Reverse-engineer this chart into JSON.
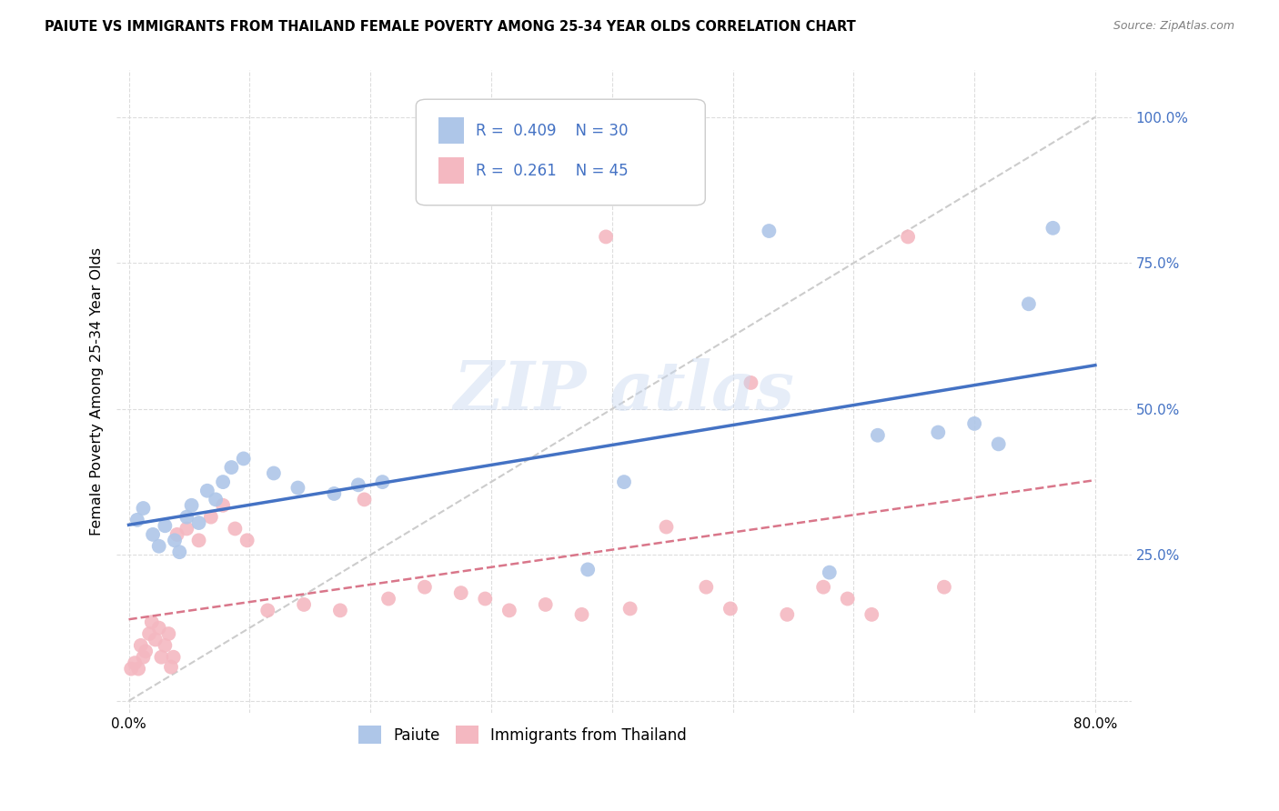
{
  "title": "PAIUTE VS IMMIGRANTS FROM THAILAND FEMALE POVERTY AMONG 25-34 YEAR OLDS CORRELATION CHART",
  "source": "Source: ZipAtlas.com",
  "ylabel": "Female Poverty Among 25-34 Year Olds",
  "xlim": [
    -0.01,
    0.83
  ],
  "ylim": [
    -0.02,
    1.08
  ],
  "paiute_R": "0.409",
  "paiute_N": "30",
  "thailand_R": "0.261",
  "thailand_N": "45",
  "paiute_color": "#aec6e8",
  "thailand_color": "#f4b8c1",
  "paiute_line_color": "#4472c4",
  "thailand_line_color": "#d9768a",
  "diagonal_color": "#cccccc",
  "legend_color": "#4472c4",
  "background_color": "#ffffff",
  "grid_color": "#dddddd",
  "paiute_x": [
    0.007,
    0.012,
    0.02,
    0.025,
    0.03,
    0.038,
    0.042,
    0.048,
    0.052,
    0.058,
    0.065,
    0.072,
    0.078,
    0.085,
    0.095,
    0.12,
    0.14,
    0.17,
    0.19,
    0.21,
    0.38,
    0.41,
    0.53,
    0.58,
    0.62,
    0.67,
    0.7,
    0.72,
    0.745,
    0.765
  ],
  "paiute_y": [
    0.31,
    0.33,
    0.285,
    0.265,
    0.3,
    0.275,
    0.255,
    0.315,
    0.335,
    0.305,
    0.36,
    0.345,
    0.375,
    0.4,
    0.415,
    0.39,
    0.365,
    0.355,
    0.37,
    0.375,
    0.225,
    0.375,
    0.805,
    0.22,
    0.455,
    0.46,
    0.475,
    0.44,
    0.68,
    0.81
  ],
  "thailand_x": [
    0.002,
    0.005,
    0.008,
    0.01,
    0.012,
    0.014,
    0.017,
    0.019,
    0.022,
    0.025,
    0.027,
    0.03,
    0.033,
    0.035,
    0.037,
    0.04,
    0.048,
    0.058,
    0.068,
    0.078,
    0.088,
    0.098,
    0.115,
    0.145,
    0.175,
    0.195,
    0.215,
    0.245,
    0.275,
    0.295,
    0.315,
    0.345,
    0.375,
    0.395,
    0.415,
    0.445,
    0.478,
    0.498,
    0.515,
    0.545,
    0.575,
    0.595,
    0.615,
    0.645,
    0.675
  ],
  "thailand_y": [
    0.055,
    0.065,
    0.055,
    0.095,
    0.075,
    0.085,
    0.115,
    0.135,
    0.105,
    0.125,
    0.075,
    0.095,
    0.115,
    0.058,
    0.075,
    0.285,
    0.295,
    0.275,
    0.315,
    0.335,
    0.295,
    0.275,
    0.155,
    0.165,
    0.155,
    0.345,
    0.175,
    0.195,
    0.185,
    0.175,
    0.155,
    0.165,
    0.148,
    0.795,
    0.158,
    0.298,
    0.195,
    0.158,
    0.545,
    0.148,
    0.195,
    0.175,
    0.148,
    0.795,
    0.195
  ],
  "ytick_positions": [
    0.0,
    0.25,
    0.5,
    0.75,
    1.0
  ],
  "ytick_labels": [
    "",
    "25.0%",
    "50.0%",
    "75.0%",
    "100.0%"
  ],
  "xtick_positions": [
    0.0,
    0.1,
    0.2,
    0.3,
    0.4,
    0.5,
    0.6,
    0.7,
    0.8
  ],
  "xtick_labels": [
    "0.0%",
    "",
    "",
    "",
    "",
    "",
    "",
    "",
    "80.0%"
  ]
}
